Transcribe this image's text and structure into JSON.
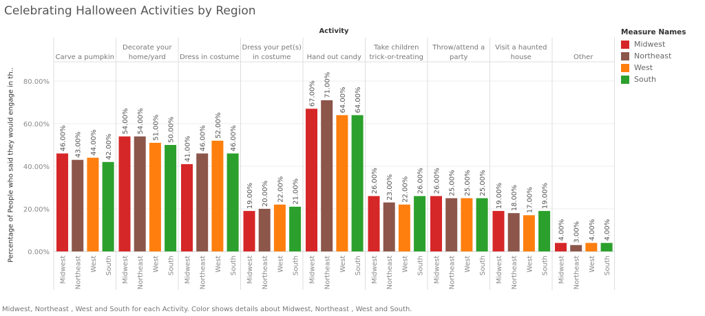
{
  "title": "Celebrating Halloween Activities by Region",
  "caption": "Midwest, Northeast , West and South for each Activity.  Color shows details about Midwest, Northeast , West and South.",
  "legend": {
    "title": "Measure Names",
    "items": [
      {
        "label": "Midwest",
        "color": "#d62728"
      },
      {
        "label": "Northeast",
        "color": "#8c564b"
      },
      {
        "label": "West",
        "color": "#ff7f0e"
      },
      {
        "label": "South",
        "color": "#2ca02c"
      }
    ]
  },
  "chart_data": {
    "type": "bar",
    "title": "Celebrating Halloween Activities by Region",
    "column_header": "Activity",
    "ylabel": "Percentage of People who said they would engage in th..",
    "ylim": [
      0,
      88
    ],
    "yticks": [
      "0.00%",
      "20.00%",
      "40.00%",
      "60.00%",
      "80.00%"
    ],
    "grid": true,
    "legend_position": "right",
    "categories": [
      "Midwest",
      "Northeast",
      "West",
      "South"
    ],
    "activities": [
      {
        "name": [
          "Carve a  pumpkin"
        ],
        "values": [
          46,
          43,
          44,
          42
        ]
      },
      {
        "name": [
          "Decorate  your",
          "home/yard"
        ],
        "values": [
          54,
          54,
          51,
          50
        ]
      },
      {
        "name": [
          "Dress  in costume"
        ],
        "values": [
          41,
          46,
          52,
          46
        ]
      },
      {
        "name": [
          "Dress  your pet(s)",
          "in costume"
        ],
        "values": [
          19,
          20,
          22,
          21
        ]
      },
      {
        "name": [
          "Hand  out candy"
        ],
        "values": [
          67,
          71,
          64,
          64
        ]
      },
      {
        "name": [
          "Take  children",
          "trick-or-treating"
        ],
        "values": [
          26,
          23,
          22,
          26
        ]
      },
      {
        "name": [
          "Throw/attend  a",
          "party"
        ],
        "values": [
          26,
          25,
          25,
          25
        ]
      },
      {
        "name": [
          "Visit  a  haunted",
          "house"
        ],
        "values": [
          19,
          18,
          17,
          19
        ]
      },
      {
        "name": [
          "Other"
        ],
        "values": [
          4,
          3,
          4,
          4
        ]
      }
    ]
  }
}
